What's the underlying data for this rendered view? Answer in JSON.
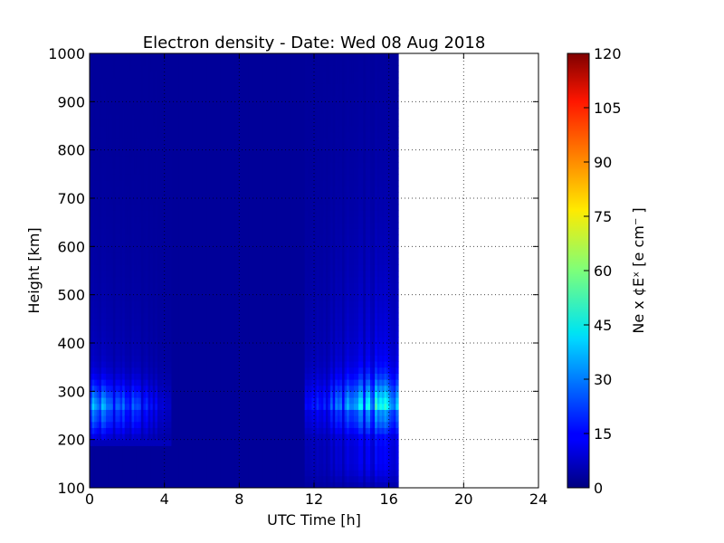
{
  "chart_data": {
    "type": "heatmap",
    "title": "Electron density - Date: Wed 08 Aug 2018",
    "xlabel": "UTC Time [h]",
    "ylabel": "Height [km]",
    "xlim": [
      0,
      24
    ],
    "ylim": [
      100,
      1000
    ],
    "x_ticks": [
      "0",
      "4",
      "8",
      "12",
      "16",
      "20",
      "24"
    ],
    "y_ticks": [
      "100",
      "200",
      "300",
      "400",
      "500",
      "600",
      "700",
      "800",
      "900",
      "1000"
    ],
    "data_extent_x_end": 16.5,
    "grid": true,
    "colorbar": {
      "label": "Ne x ¢Eˣ  [e cm⁻ ]",
      "range": [
        0,
        120
      ],
      "ticks": [
        "0",
        "15",
        "30",
        "45",
        "60",
        "75",
        "90",
        "105",
        "120"
      ],
      "colormap": "jet"
    },
    "features": [
      {
        "name": "early-morning",
        "x_range": [
          0,
          4.4
        ],
        "peak_height": 260,
        "peak_value": 35
      },
      {
        "name": "afternoon",
        "x_range": [
          11.5,
          16.5
        ],
        "peak_height": 260,
        "peak_value": 42
      }
    ]
  }
}
